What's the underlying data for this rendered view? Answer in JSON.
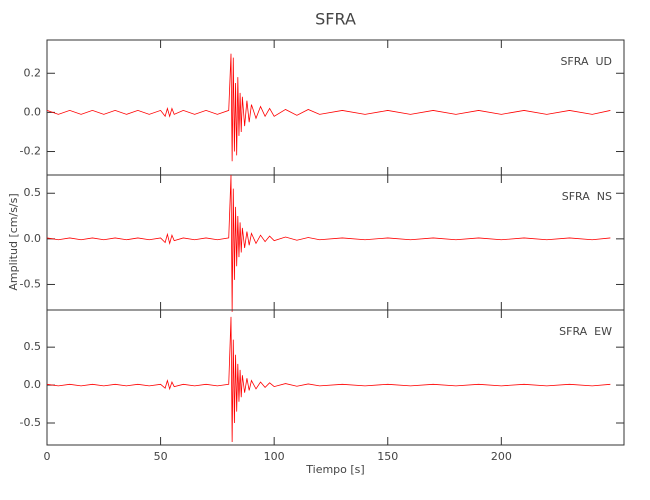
{
  "chart_data": [
    {
      "type": "line",
      "title": "SFRA",
      "label": "SFRA  UD",
      "x": [
        0,
        5,
        10,
        15,
        20,
        25,
        30,
        35,
        40,
        45,
        50,
        52,
        53,
        54,
        55,
        56,
        60,
        65,
        70,
        75,
        80,
        81,
        81.5,
        82,
        82.5,
        83,
        83.5,
        84,
        84.5,
        85,
        85.5,
        86,
        87,
        88,
        89,
        90,
        92,
        94,
        96,
        98,
        100,
        105,
        110,
        115,
        120,
        130,
        140,
        150,
        160,
        170,
        180,
        190,
        200,
        210,
        220,
        230,
        240,
        248
      ],
      "series": [
        {
          "color": "#ff0000",
          "values": [
            0.01,
            -0.01,
            0.01,
            -0.01,
            0.01,
            -0.01,
            0.01,
            -0.01,
            0.01,
            -0.01,
            0.01,
            -0.02,
            0.02,
            -0.02,
            0.02,
            -0.01,
            0.01,
            -0.01,
            0.01,
            -0.01,
            0.01,
            0.3,
            -0.25,
            0.28,
            -0.2,
            0.15,
            -0.22,
            0.18,
            -0.12,
            0.1,
            -0.1,
            0.08,
            -0.07,
            0.06,
            -0.05,
            0.04,
            -0.03,
            0.03,
            -0.02,
            0.02,
            -0.02,
            0.015,
            -0.015,
            0.015,
            -0.01,
            0.01,
            -0.01,
            0.01,
            -0.01,
            0.01,
            -0.01,
            0.01,
            -0.01,
            0.01,
            -0.01,
            0.01,
            -0.01,
            0.01
          ]
        }
      ],
      "xlim": [
        0,
        254
      ],
      "xticks": [
        0,
        50,
        100,
        150,
        200
      ],
      "ylim": [
        -0.32,
        0.37
      ],
      "yticks": [
        -0.2,
        {
          "value": 0,
          "label": "0.0"
        },
        0.2
      ]
    },
    {
      "type": "line",
      "label": "SFRA  NS",
      "ylabel": "Amplitud [cm/s/s]",
      "x": [
        0,
        5,
        10,
        15,
        20,
        25,
        30,
        35,
        40,
        45,
        50,
        52,
        53,
        54,
        55,
        56,
        60,
        65,
        70,
        75,
        80,
        81,
        81.5,
        82,
        82.5,
        83,
        83.5,
        84,
        84.5,
        85,
        85.5,
        86,
        87,
        88,
        89,
        90,
        92,
        94,
        96,
        98,
        100,
        105,
        110,
        115,
        120,
        130,
        140,
        150,
        160,
        170,
        180,
        190,
        200,
        210,
        220,
        230,
        240,
        248
      ],
      "series": [
        {
          "color": "#ff0000",
          "values": [
            0.01,
            -0.01,
            0.01,
            -0.01,
            0.01,
            -0.01,
            0.01,
            -0.01,
            0.01,
            -0.01,
            0.01,
            -0.04,
            0.05,
            -0.05,
            0.04,
            -0.02,
            0.01,
            -0.01,
            0.01,
            -0.01,
            0.01,
            0.7,
            -0.8,
            0.55,
            -0.45,
            0.35,
            -0.3,
            0.25,
            -0.2,
            0.18,
            -0.15,
            0.12,
            -0.1,
            0.08,
            -0.07,
            0.06,
            -0.05,
            0.04,
            -0.03,
            0.03,
            -0.02,
            0.02,
            -0.015,
            0.015,
            -0.01,
            0.01,
            -0.01,
            0.01,
            -0.01,
            0.01,
            -0.01,
            0.01,
            -0.01,
            0.01,
            -0.01,
            0.01,
            -0.01,
            0.01
          ]
        }
      ],
      "xlim": [
        0,
        254
      ],
      "xticks": [
        0,
        50,
        100,
        150,
        200
      ],
      "ylim": [
        -0.78,
        0.7
      ],
      "yticks": [
        -0.5,
        {
          "value": 0,
          "label": "0.0"
        },
        0.5
      ]
    },
    {
      "type": "line",
      "label": "SFRA  EW",
      "xlabel": "Tiempo [s]",
      "x": [
        0,
        5,
        10,
        15,
        20,
        25,
        30,
        35,
        40,
        45,
        50,
        52,
        53,
        54,
        55,
        56,
        60,
        65,
        70,
        75,
        80,
        81,
        81.5,
        82,
        82.5,
        83,
        83.5,
        84,
        84.5,
        85,
        85.5,
        86,
        87,
        88,
        89,
        90,
        92,
        94,
        96,
        98,
        100,
        105,
        110,
        115,
        120,
        130,
        140,
        150,
        160,
        170,
        180,
        190,
        200,
        210,
        220,
        230,
        240,
        248
      ],
      "series": [
        {
          "color": "#ff0000",
          "values": [
            0.01,
            -0.01,
            0.01,
            -0.01,
            0.01,
            -0.01,
            0.01,
            -0.01,
            0.01,
            -0.01,
            0.01,
            -0.04,
            0.06,
            -0.05,
            0.04,
            -0.02,
            0.01,
            -0.01,
            0.01,
            -0.01,
            0.01,
            0.9,
            -0.75,
            0.6,
            -0.5,
            0.4,
            -0.35,
            0.28,
            -0.22,
            0.2,
            -0.16,
            0.13,
            -0.1,
            0.09,
            -0.07,
            0.06,
            -0.05,
            0.04,
            -0.03,
            0.03,
            -0.02,
            0.02,
            -0.015,
            0.015,
            -0.01,
            0.01,
            -0.01,
            0.01,
            -0.01,
            0.01,
            -0.01,
            0.01,
            -0.01,
            0.01,
            -0.01,
            0.01,
            -0.01,
            0.01
          ]
        }
      ],
      "xlim": [
        0,
        254
      ],
      "xticks": [
        0,
        50,
        100,
        150,
        200
      ],
      "ylim": [
        -0.79,
        0.99
      ],
      "yticks": [
        -0.5,
        {
          "value": 0,
          "label": "0.0"
        },
        0.5
      ]
    }
  ]
}
